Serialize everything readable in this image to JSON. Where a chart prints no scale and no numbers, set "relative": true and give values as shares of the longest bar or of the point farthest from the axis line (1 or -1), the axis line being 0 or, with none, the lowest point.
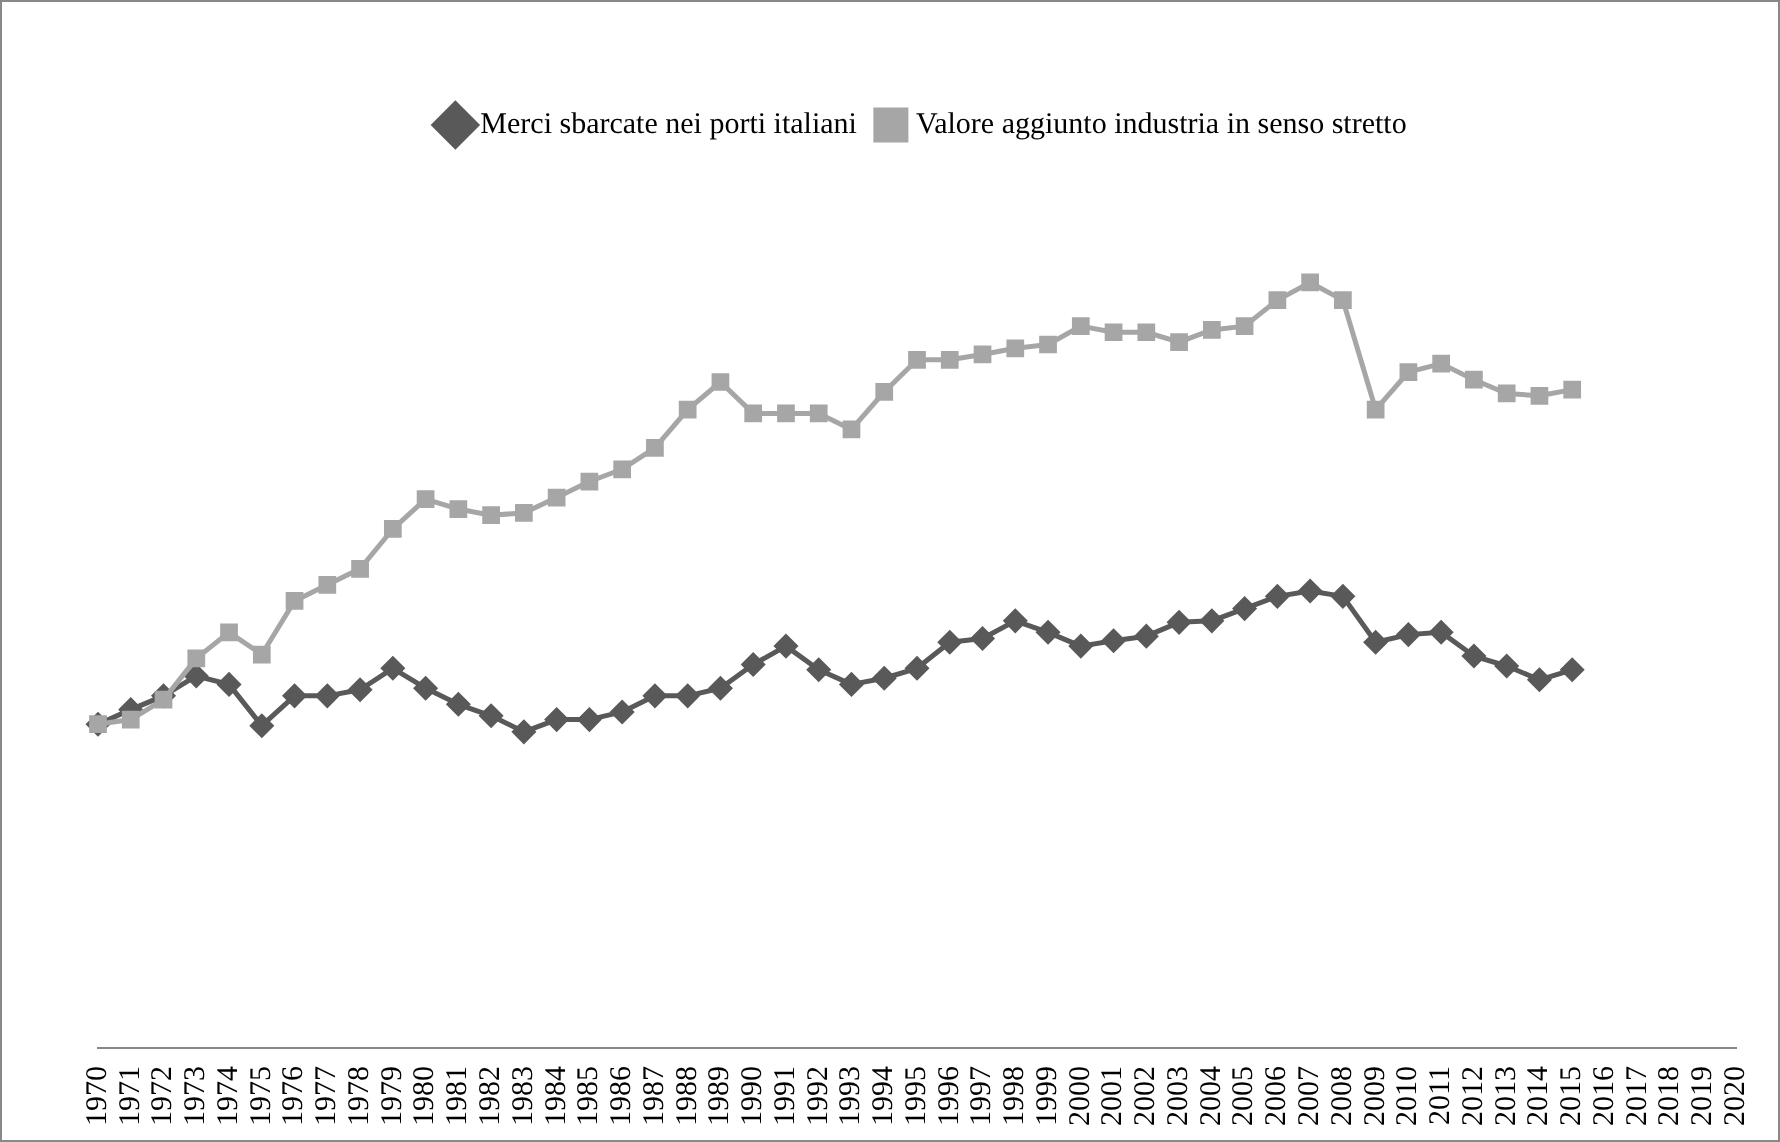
{
  "chart_data": {
    "type": "line",
    "relative": true,
    "legend": "top",
    "grid": false,
    "categories": [
      "1970",
      "1971",
      "1972",
      "1973",
      "1974",
      "1975",
      "1976",
      "1977",
      "1978",
      "1979",
      "1980",
      "1981",
      "1982",
      "1983",
      "1984",
      "1985",
      "1986",
      "1987",
      "1988",
      "1989",
      "1990",
      "1991",
      "1992",
      "1993",
      "1994",
      "1995",
      "1996",
      "1997",
      "1998",
      "1999",
      "2000",
      "2001",
      "2002",
      "2003",
      "2004",
      "2005",
      "2006",
      "2007",
      "2008",
      "2009",
      "2010",
      "2011",
      "2012",
      "2013",
      "2014",
      "2015",
      "2016",
      "2017",
      "2018",
      "2019",
      "2020"
    ],
    "series": [
      {
        "name": "Merci sbarcate nei porti italiani",
        "color": "#595959",
        "marker": "diamond",
        "values": [
          0.423,
          0.442,
          0.46,
          0.486,
          0.475,
          0.421,
          0.46,
          0.46,
          0.468,
          0.496,
          0.47,
          0.449,
          0.434,
          0.413,
          0.429,
          0.429,
          0.439,
          0.46,
          0.46,
          0.47,
          0.501,
          0.525,
          0.494,
          0.475,
          0.483,
          0.496,
          0.53,
          0.535,
          0.558,
          0.543,
          0.525,
          0.532,
          0.538,
          0.556,
          0.558,
          0.574,
          0.59,
          0.597,
          0.59,
          0.53,
          0.54,
          0.543,
          0.512,
          0.499,
          0.481,
          0.494,
          null,
          null,
          null,
          null,
          null
        ]
      },
      {
        "name": "Valore aggiunto industria in senso stretto",
        "color": "#a6a6a6",
        "marker": "square",
        "values": [
          0.423,
          0.429,
          0.455,
          0.509,
          0.543,
          0.514,
          0.584,
          0.605,
          0.626,
          0.678,
          0.717,
          0.704,
          0.696,
          0.699,
          0.719,
          0.74,
          0.756,
          0.784,
          0.834,
          0.87,
          0.829,
          0.829,
          0.829,
          0.808,
          0.857,
          0.899,
          0.899,
          0.906,
          0.914,
          0.919,
          0.943,
          0.935,
          0.935,
          0.922,
          0.938,
          0.943,
          0.977,
          1,
          0.977,
          0.834,
          0.883,
          0.894,
          0.873,
          0.855,
          0.852,
          0.86,
          null,
          null,
          null,
          null,
          null
        ]
      }
    ]
  }
}
